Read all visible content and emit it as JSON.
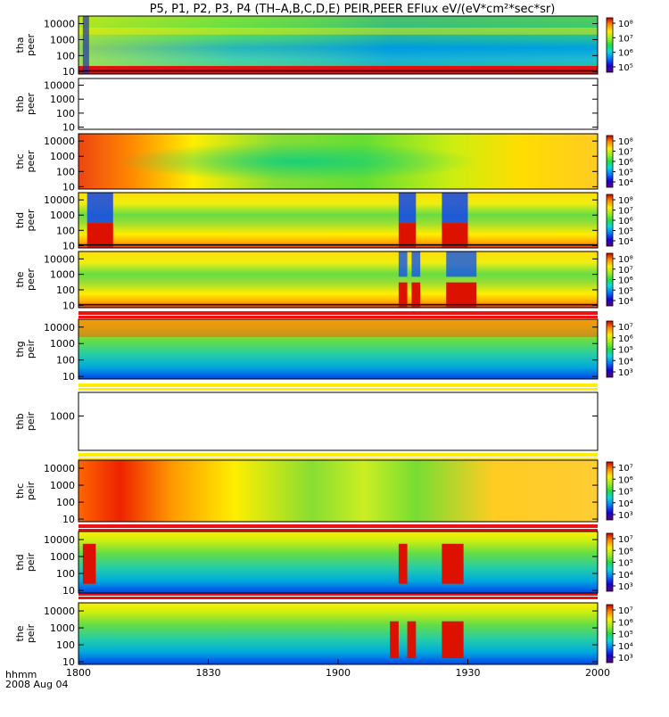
{
  "title": "P5, P1, P2, P3, P4 (TH–A,B,C,D,E) PEIR,PEER EFlux eV/(eV*cm²*sec*sr)",
  "footer": {
    "axis_label": "hhmm",
    "date": "2008 Aug 04"
  },
  "colors": {
    "bar_red": "#ee1111",
    "bar_yellow": "#ffee00",
    "potential_line": "#000000"
  },
  "chart_data": {
    "type": "heatmap",
    "shared_x": {
      "range": [
        "18:00",
        "20:00"
      ],
      "tick_labels": [
        "1800",
        "1830",
        "1900",
        "1930",
        "2000"
      ],
      "tick_values": [
        0,
        30,
        60,
        90,
        120
      ]
    },
    "panels": [
      {
        "label": [
          "tha",
          "peer"
        ],
        "yticks": [
          "10000",
          "1000",
          "100",
          "10"
        ],
        "ylim": [
          7,
          30000
        ],
        "ylog": true,
        "colorbar": [
          "10⁸",
          "10⁷",
          "10⁶",
          "10⁵"
        ],
        "empty": false,
        "potential": true
      },
      {
        "label": [
          "thb",
          "peer"
        ],
        "yticks": [
          "10000",
          "1000",
          "100",
          "10"
        ],
        "ylim": [
          7,
          30000
        ],
        "ylog": true,
        "colorbar": [],
        "empty": true,
        "potential": false
      },
      {
        "label": [
          "thc",
          "peer"
        ],
        "yticks": [
          "10000",
          "1000",
          "100",
          "10"
        ],
        "ylim": [
          7,
          30000
        ],
        "ylog": true,
        "colorbar": [
          "10⁸",
          "10⁷",
          "10⁶",
          "10⁵",
          "10⁴"
        ],
        "empty": false,
        "potential": false
      },
      {
        "label": [
          "thd",
          "peer"
        ],
        "yticks": [
          "10000",
          "1000",
          "100",
          "10"
        ],
        "ylim": [
          7,
          30000
        ],
        "ylog": true,
        "colorbar": [
          "10⁸",
          "10⁷",
          "10⁶",
          "10⁵",
          "10⁴"
        ],
        "empty": false,
        "potential": true
      },
      {
        "label": [
          "the",
          "peer"
        ],
        "yticks": [
          "10000",
          "1000",
          "100",
          "10"
        ],
        "ylim": [
          7,
          30000
        ],
        "ylog": true,
        "colorbar": [
          "10⁸",
          "10⁷",
          "10⁶",
          "10⁵",
          "10⁴"
        ],
        "empty": false,
        "potential": true
      },
      {
        "label": [
          "thg",
          "peir"
        ],
        "yticks": [
          "10000",
          "1000",
          "100",
          "10"
        ],
        "ylim": [
          7,
          30000
        ],
        "ylog": true,
        "colorbar": [
          "10⁷",
          "10⁶",
          "10⁵",
          "10⁴",
          "10³"
        ],
        "empty": false,
        "potential": false
      },
      {
        "label": [
          "thb",
          "peir"
        ],
        "yticks": [
          "1000"
        ],
        "ylim": [
          7,
          30000
        ],
        "ylog": true,
        "colorbar": [],
        "empty": true,
        "potential": false
      },
      {
        "label": [
          "thc",
          "peir"
        ],
        "yticks": [
          "10000",
          "1000",
          "100",
          "10"
        ],
        "ylim": [
          7,
          30000
        ],
        "ylog": true,
        "colorbar": [
          "10⁷",
          "10⁶",
          "10⁵",
          "10⁴",
          "10³"
        ],
        "empty": false,
        "potential": false
      },
      {
        "label": [
          "thd",
          "peir"
        ],
        "yticks": [
          "10000",
          "1000",
          "100",
          "10"
        ],
        "ylim": [
          7,
          30000
        ],
        "ylog": true,
        "colorbar": [
          "10⁷",
          "10⁶",
          "10⁵",
          "10⁴",
          "10³"
        ],
        "empty": false,
        "potential": false
      },
      {
        "label": [
          "the",
          "peir"
        ],
        "yticks": [
          "10000",
          "1000",
          "100",
          "10"
        ],
        "ylim": [
          7,
          30000
        ],
        "ylog": true,
        "colorbar": [
          "10⁷",
          "10⁶",
          "10⁵",
          "10⁴",
          "10³"
        ],
        "empty": false,
        "potential": false
      }
    ]
  }
}
